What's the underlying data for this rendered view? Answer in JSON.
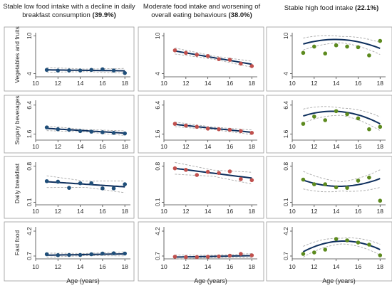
{
  "columns": [
    {
      "title": "Stable low food intake with a decline in daily breakfast consumption",
      "pct": "(39.9%)"
    },
    {
      "title": "Moderate food intake and worsening of overall eating behaviours",
      "pct": "(38.0%)"
    },
    {
      "title": "Stable high food intake",
      "pct": "(22.1%)"
    }
  ],
  "colors": {
    "col0": "#1f4e79",
    "col1": "#c0504d",
    "col2": "#5c8a1e",
    "fit": "#0d2e5c",
    "ci": "#aaaaaa"
  },
  "chart_data": {
    "type": "scatter",
    "x_ticks": [
      10,
      12,
      14,
      16,
      18
    ],
    "x_range": [
      10,
      18.5
    ],
    "xlabel": "Age (years)",
    "rows": [
      {
        "label": "Vegetables and fruits",
        "ylim": [
          3.5,
          10.5
        ],
        "y_ticks": [
          {
            "v": 4,
            "t": "4"
          },
          {
            "v": 10,
            "t": "10"
          }
        ]
      },
      {
        "label": "Sugary beverages",
        "ylim": [
          0.6,
          7.2
        ],
        "y_ticks": [
          {
            "v": 1.6,
            "t": "1.6"
          },
          {
            "v": 6.4,
            "t": "6.4"
          }
        ]
      },
      {
        "label": "Daily breakfast",
        "ylim": [
          0.05,
          0.88
        ],
        "y_ticks": [
          {
            "v": 0.1,
            "t": "0.1"
          },
          {
            "v": 0.8,
            "t": "0.8"
          }
        ]
      },
      {
        "label": "Fast food",
        "ylim": [
          0.3,
          4.8
        ],
        "y_ticks": [
          {
            "v": 0.7,
            "t": "0.7"
          },
          {
            "v": 4.2,
            "t": "4.2"
          }
        ]
      }
    ],
    "panels": [
      [
        {
          "x": [
            11,
            12,
            13,
            14,
            15,
            16,
            17,
            18
          ],
          "y": [
            4.6,
            4.5,
            4.5,
            4.5,
            4.6,
            4.7,
            4.5,
            4.1
          ],
          "fit": [
            4.6,
            4.45
          ],
          "ci": 0.2
        },
        {
          "x": [
            11,
            12,
            13,
            14,
            15,
            16,
            17,
            18
          ],
          "y": [
            2.7,
            2.4,
            2.3,
            2.1,
            2.0,
            1.9,
            1.8,
            1.7
          ],
          "fit": [
            2.55,
            1.75
          ],
          "ci": 0.2
        },
        {
          "x": [
            11,
            12,
            13,
            14,
            15,
            16,
            17,
            18
          ],
          "y": [
            0.51,
            0.5,
            0.38,
            0.47,
            0.47,
            0.37,
            0.37,
            0.45
          ],
          "fit": [
            0.5,
            0.4
          ],
          "ci": 0.06
        },
        {
          "x": [
            11,
            12,
            13,
            14,
            15,
            16,
            17,
            18
          ],
          "y": [
            0.95,
            0.82,
            0.85,
            0.85,
            0.95,
            1.05,
            1.08,
            1.05
          ],
          "fit": [
            0.82,
            1.0
          ],
          "ci": 0.15
        }
      ],
      [
        {
          "x": [
            11,
            12,
            13,
            14,
            15,
            16,
            17,
            18
          ],
          "y": [
            7.7,
            7.3,
            7.0,
            6.8,
            6.3,
            6.2,
            5.6,
            5.2
          ],
          "fit": [
            7.6,
            5.5
          ],
          "ci": 0.25
        },
        {
          "x": [
            11,
            12,
            13,
            14,
            15,
            16,
            17,
            18
          ],
          "y": [
            3.3,
            3.0,
            2.8,
            2.5,
            2.4,
            2.3,
            2.1,
            1.8
          ],
          "fit": [
            3.2,
            1.9
          ],
          "ci": 0.2
        },
        {
          "x": [
            11,
            12,
            13,
            14,
            15,
            16,
            17,
            18
          ],
          "y": [
            0.76,
            0.73,
            0.63,
            0.69,
            0.67,
            0.7,
            0.55,
            0.53
          ],
          "fit": [
            0.76,
            0.57
          ],
          "ci": 0.06
        },
        {
          "x": [
            11,
            12,
            13,
            14,
            15,
            16,
            17,
            18
          ],
          "y": [
            0.6,
            0.55,
            0.55,
            0.6,
            0.65,
            0.75,
            1.0,
            0.8
          ],
          "fit": [
            0.55,
            0.75
          ],
          "ci": 0.15
        }
      ],
      [
        {
          "x": [
            11,
            12,
            13,
            14,
            15,
            16,
            17,
            18
          ],
          "y": [
            7.3,
            8.3,
            7.2,
            8.5,
            8.3,
            8.2,
            6.9,
            9.2
          ],
          "fit": [
            8.7,
            9.4,
            8.0
          ],
          "ci": 0.5
        },
        {
          "x": [
            11,
            12,
            13,
            14,
            15,
            16,
            17,
            18
          ],
          "y": [
            3.3,
            4.5,
            3.9,
            5.4,
            4.9,
            4.2,
            2.4,
            2.8
          ],
          "fit": [
            4.6,
            5.3,
            3.3
          ],
          "ci": 0.6
        },
        {
          "x": [
            11,
            12,
            13,
            14,
            15,
            16,
            17,
            18
          ],
          "y": [
            0.54,
            0.45,
            0.45,
            0.39,
            0.38,
            0.52,
            0.58,
            0.13
          ],
          "fit": [
            0.53,
            0.41,
            0.56
          ],
          "ci": 0.09
        },
        {
          "x": [
            11,
            12,
            13,
            14,
            15,
            16,
            17,
            18
          ],
          "y": [
            1.0,
            1.2,
            1.6,
            3.1,
            2.9,
            2.6,
            2.3,
            0.8
          ],
          "fit": [
            1.3,
            2.8,
            1.6
          ],
          "ci": 0.4
        }
      ]
    ]
  }
}
